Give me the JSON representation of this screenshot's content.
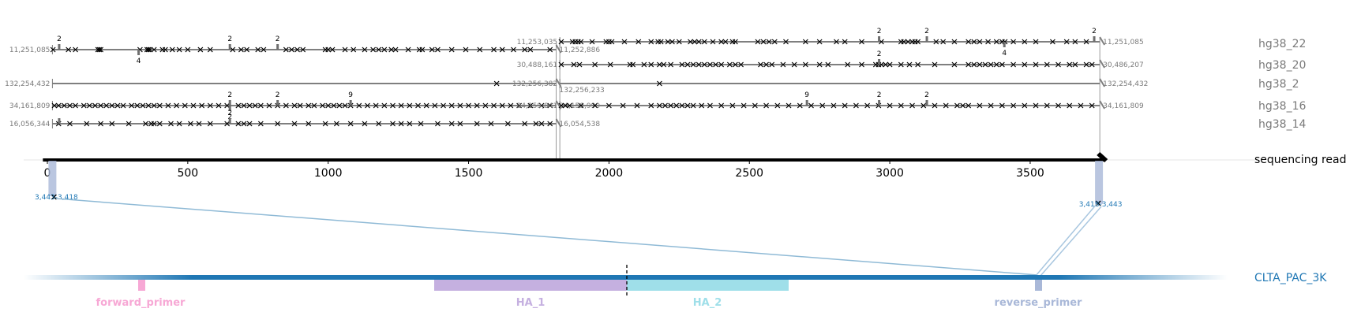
{
  "chart_data": {
    "type": "alignment-diagram",
    "read": {
      "label": "sequencing read",
      "x_ticks": [
        0,
        500,
        1000,
        1500,
        2000,
        2500,
        3000,
        3500
      ],
      "length": 3765
    },
    "rows": [
      {
        "name": "hg38_22",
        "segments": [
          {
            "read_start": 18,
            "read_end": 1812,
            "left_label": "11,251,085",
            "right_label": "11,252,886",
            "lane": "low",
            "right_label_dy": 0,
            "x_marks": [
              20,
              75,
              100,
              180,
              185,
              190,
              330,
              355,
              360,
              365,
              380,
              410,
              420,
              445,
              470,
              500,
              545,
              580,
              660,
              690,
              710,
              750,
              770,
              850,
              870,
              890,
              910,
              990,
              1000,
              1015,
              1060,
              1090,
              1130,
              1160,
              1180,
              1200,
              1225,
              1240,
              1285,
              1325,
              1335,
              1370,
              1390,
              1440,
              1490,
              1540,
              1590,
              1620,
              1660,
              1700,
              1720,
              1790
            ],
            "insertions": [
              {
                "pos": 42,
                "label": "2",
                "up": true
              },
              {
                "pos": 325,
                "label": "4",
                "up": false
              },
              {
                "pos": 650,
                "label": "2",
                "up": true
              },
              {
                "pos": 820,
                "label": "2",
                "up": true
              }
            ]
          },
          {
            "read_start": 1825,
            "read_end": 3748,
            "left_label": "11,253,035",
            "right_label": "11,251,085",
            "lane": "high",
            "right_label_dy": 0,
            "x_marks": [
              1830,
              1870,
              1880,
              1890,
              1900,
              1940,
              1990,
              2000,
              2010,
              2055,
              2105,
              2150,
              2175,
              2185,
              2210,
              2225,
              2250,
              2290,
              2305,
              2320,
              2340,
              2370,
              2400,
              2415,
              2440,
              2450,
              2530,
              2550,
              2570,
              2590,
              2630,
              2700,
              2750,
              2810,
              2840,
              2900,
              2970,
              3040,
              3050,
              3065,
              3080,
              3090,
              3100,
              3165,
              3190,
              3230,
              3280,
              3300,
              3320,
              3350,
              3380,
              3400,
              3410,
              3440,
              3480,
              3520,
              3580,
              3630,
              3660,
              3700
            ],
            "insertions": [
              {
                "pos": 2962,
                "label": "2",
                "up": true
              },
              {
                "pos": 3132,
                "label": "2",
                "up": true
              },
              {
                "pos": 3408,
                "label": "4",
                "up": false
              },
              {
                "pos": 3728,
                "label": "2",
                "up": true
              }
            ]
          }
        ]
      },
      {
        "name": "hg38_20",
        "segments": [
          {
            "read_start": 1825,
            "read_end": 3748,
            "left_label": "30,488,161",
            "right_label": "30,486,207",
            "lane": "mid",
            "right_label_dy": 0,
            "x_marks": [
              1830,
              1875,
              1895,
              1950,
              2005,
              2075,
              2085,
              2125,
              2150,
              2180,
              2195,
              2220,
              2260,
              2280,
              2300,
              2320,
              2340,
              2360,
              2380,
              2400,
              2430,
              2450,
              2470,
              2540,
              2560,
              2580,
              2620,
              2660,
              2700,
              2750,
              2780,
              2850,
              2900,
              2950,
              2960,
              2970,
              2985,
              3000,
              3040,
              3070,
              3100,
              3160,
              3230,
              3280,
              3300,
              3320,
              3340,
              3360,
              3380,
              3400,
              3440,
              3480,
              3520,
              3560,
              3600,
              3640,
              3660,
              3700,
              3720
            ],
            "insertions": [
              {
                "pos": 2962,
                "label": "2",
                "up": true
              }
            ]
          }
        ]
      },
      {
        "name": "hg38_2",
        "segments": [
          {
            "read_start": 18,
            "read_end": 1812,
            "left_label": "132,254,432",
            "right_label": "132,256,233",
            "lane": "mid",
            "right_label_dy": 8,
            "x_marks": [
              1600
            ],
            "insertions": []
          },
          {
            "read_start": 1825,
            "read_end": 3748,
            "left_label": "132,256,382",
            "right_label": "132,254,432",
            "lane": "mid",
            "right_label_dy": 0,
            "x_marks": [
              2180
            ],
            "insertions": []
          }
        ]
      },
      {
        "name": "hg38_16",
        "segments": [
          {
            "read_start": 18,
            "read_end": 1812,
            "left_label": "34,161,809",
            "right_label": "34,159,990",
            "lane": "mid",
            "right_label_dy": 0,
            "x_marks": [
              25,
              40,
              60,
              80,
              100,
              130,
              150,
              170,
              190,
              210,
              230,
              250,
              270,
              300,
              320,
              340,
              360,
              380,
              400,
              430,
              460,
              490,
              520,
              550,
              580,
              610,
              640,
              680,
              700,
              720,
              740,
              760,
              790,
              820,
              850,
              880,
              900,
              930,
              950,
              980,
              1000,
              1020,
              1040,
              1060,
              1080,
              1110,
              1140,
              1170,
              1200,
              1230,
              1260,
              1290,
              1320,
              1350,
              1380,
              1410,
              1440,
              1470,
              1500,
              1530,
              1560,
              1590,
              1620,
              1650,
              1680,
              1720,
              1760,
              1790
            ],
            "insertions": [
              {
                "pos": 650,
                "label": "2",
                "up": true
              },
              {
                "pos": 650,
                "label": "2",
                "up": false
              },
              {
                "pos": 820,
                "label": "2",
                "up": true
              },
              {
                "pos": 1080,
                "label": "9",
                "up": true
              }
            ]
          },
          {
            "read_start": 1825,
            "read_end": 3748,
            "left_label": "34,159,841",
            "right_label": "34,161,809",
            "lane": "mid",
            "right_label_dy": 0,
            "x_marks": [
              1830,
              1845,
              1860,
              1900,
              1950,
              2000,
              2050,
              2100,
              2150,
              2180,
              2200,
              2220,
              2240,
              2260,
              2280,
              2300,
              2330,
              2360,
              2400,
              2440,
              2480,
              2520,
              2560,
              2600,
              2640,
              2680,
              2720,
              2760,
              2800,
              2840,
              2880,
              2920,
              2960,
              3000,
              3040,
              3080,
              3120,
              3160,
              3200,
              3240,
              3260,
              3280,
              3320,
              3360,
              3400,
              3440,
              3480,
              3520,
              3560,
              3600,
              3640,
              3680,
              3720
            ],
            "insertions": [
              {
                "pos": 2705,
                "label": "9",
                "up": true
              },
              {
                "pos": 2962,
                "label": "2",
                "up": true
              },
              {
                "pos": 3132,
                "label": "2",
                "up": true
              }
            ]
          }
        ]
      },
      {
        "name": "hg38_14",
        "segments": [
          {
            "read_start": 18,
            "read_end": 1812,
            "left_label": "16,056,344",
            "right_label": "16,054,538",
            "lane": "mid",
            "right_label_dy": 0,
            "x_marks": [
              40,
              80,
              140,
              190,
              230,
              290,
              350,
              370,
              380,
              400,
              440,
              470,
              510,
              540,
              580,
              640,
              680,
              700,
              720,
              760,
              820,
              880,
              930,
              990,
              1030,
              1080,
              1130,
              1180,
              1230,
              1260,
              1290,
              1330,
              1390,
              1440,
              1470,
              1530,
              1580,
              1640,
              1700,
              1740,
              1760,
              1790
            ],
            "insertions": [
              {
                "pos": 42,
                "label": "",
                "up": true
              },
              {
                "pos": 650,
                "label": "2",
                "up": true
              }
            ]
          }
        ]
      }
    ],
    "read_to_target": {
      "left": {
        "label": "3,443-3,418",
        "read_pos": 18
      },
      "right": {
        "label": "3,418-3,443",
        "read_pos": 3745
      }
    },
    "target": {
      "label": "CLTA_PAC_3K",
      "features": [
        {
          "name": "forward_primer",
          "color": "#f7a8d5"
        },
        {
          "name": "HA_1",
          "color": "#c5b0e0"
        },
        {
          "name": "HA_2",
          "color": "#9fdfe9"
        },
        {
          "name": "reverse_primer",
          "color": "#a9b8d8"
        }
      ]
    },
    "colors": {
      "alignment": "#7f7f7f",
      "read": "#000000",
      "target": "#1f77b4"
    }
  }
}
